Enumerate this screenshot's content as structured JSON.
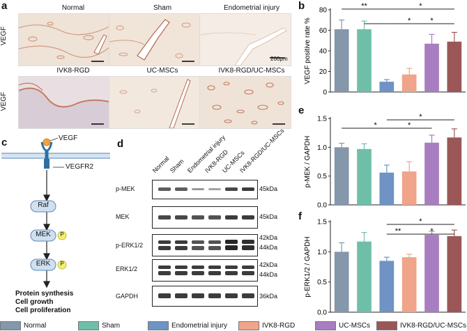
{
  "panel_labels": {
    "a": "a",
    "b": "b",
    "c": "c",
    "d": "d",
    "e": "e",
    "f": "f"
  },
  "micrographs": {
    "row_label": "VEGF",
    "titles": [
      "Normal",
      "Sham",
      "Endometrial injury",
      "IVK8-RGD",
      "UC-MSCs",
      "IVK8-RGD/UC-MSCs"
    ],
    "scale_bar": "200μm"
  },
  "pathway": {
    "ligand": "VEGF",
    "receptor": "VEGFR2",
    "nodes": [
      "Raf",
      "MEK",
      "ERK"
    ],
    "phospho": "P",
    "outputs": [
      "Protein synthesis",
      "Cell growth",
      "Cell proliferation"
    ]
  },
  "blot": {
    "lanes": [
      "Normal",
      "Sham",
      "Endometrial injury",
      "IVK8-RGD",
      "UC-MSCs",
      "IVK8-RGD/UC-MSCs"
    ],
    "rows": [
      {
        "name": "p-MEK",
        "kda": [
          "45kDa"
        ]
      },
      {
        "name": "MEK",
        "kda": [
          "45kDa"
        ]
      },
      {
        "name": "p-ERK1/2",
        "kda": [
          "42kDa",
          "44kDa"
        ]
      },
      {
        "name": "ERK1/2",
        "kda": [
          "42kDa",
          "44kDa"
        ]
      },
      {
        "name": "GAPDH",
        "kda": [
          "36kDa"
        ]
      }
    ]
  },
  "colors": [
    "#8497ab",
    "#6fbfa8",
    "#6e93c4",
    "#f0a489",
    "#a87ec0",
    "#9b5757"
  ],
  "legend": [
    "Normal",
    "Sham",
    "Endometrial injury",
    "IVK8-RGD",
    "UC-MSCs",
    "IVK8-RGD/UC-MSCs"
  ],
  "chart_data": [
    {
      "type": "bar",
      "panel": "b",
      "categories": [
        "Normal",
        "Sham",
        "Endometrial injury",
        "IVK8-RGD",
        "UC-MSCs",
        "IVK8-RGD/UC-MSCs"
      ],
      "values": [
        61,
        61,
        10,
        17,
        47,
        49
      ],
      "errors": [
        9,
        8,
        2,
        6,
        9,
        9
      ],
      "ylabel": "VEGF positive rate %",
      "ylim": [
        0,
        80
      ],
      "yticks": [
        "0",
        "20",
        "40",
        "60",
        "80"
      ],
      "significance": [
        {
          "from": 0,
          "to": 2,
          "label": "**",
          "level": 1
        },
        {
          "from": 1,
          "to": 2,
          "label": "",
          "level": 0
        },
        {
          "from": 2,
          "to": 5,
          "label": "*",
          "level": 1
        },
        {
          "from": 2,
          "to": 4,
          "label": "*",
          "level": 0
        },
        {
          "from": 3,
          "to": 5,
          "label": "*",
          "level": 0
        }
      ]
    },
    {
      "type": "bar",
      "panel": "e",
      "categories": [
        "Normal",
        "Sham",
        "Endometrial injury",
        "IVK8-RGD",
        "UC-MSCs",
        "IVK8-RGD/UC-MSCs"
      ],
      "values": [
        1.0,
        0.97,
        0.56,
        0.58,
        1.08,
        1.17
      ],
      "errors": [
        0.07,
        0.09,
        0.13,
        0.17,
        0.13,
        0.15
      ],
      "ylabel": "p-MEK / GAPDH",
      "ylim": [
        0,
        1.5
      ],
      "yticks": [
        "0.0",
        "0.5",
        "1.0",
        "1.5"
      ],
      "significance": [
        {
          "from": 0,
          "to": 1,
          "label": "",
          "level": 0
        },
        {
          "from": 1,
          "to": 2,
          "label": "*",
          "level": 0
        },
        {
          "from": 2,
          "to": 5,
          "label": "*",
          "level": 1
        },
        {
          "from": 2,
          "to": 4,
          "label": "*",
          "level": 0
        }
      ]
    },
    {
      "type": "bar",
      "panel": "f",
      "categories": [
        "Normal",
        "Sham",
        "Endometrial injury",
        "IVK8-RGD",
        "UC-MSCs",
        "IVK8-RGD/UC-MSCs"
      ],
      "values": [
        1.0,
        1.17,
        0.85,
        0.91,
        1.28,
        1.26
      ],
      "errors": [
        0.15,
        0.15,
        0.06,
        0.05,
        0.06,
        0.1
      ],
      "ylabel": "p-ERK1/2 / GAPDH",
      "ylim": [
        0,
        1.5
      ],
      "yticks": [
        "0.0",
        "0.5",
        "1.0",
        "1.5"
      ],
      "significance": [
        {
          "from": 2,
          "to": 5,
          "label": "*",
          "level": 1
        },
        {
          "from": 2,
          "to": 3,
          "label": "**",
          "level": 0
        },
        {
          "from": 3,
          "to": 5,
          "label": "*",
          "level": 0
        }
      ]
    }
  ]
}
